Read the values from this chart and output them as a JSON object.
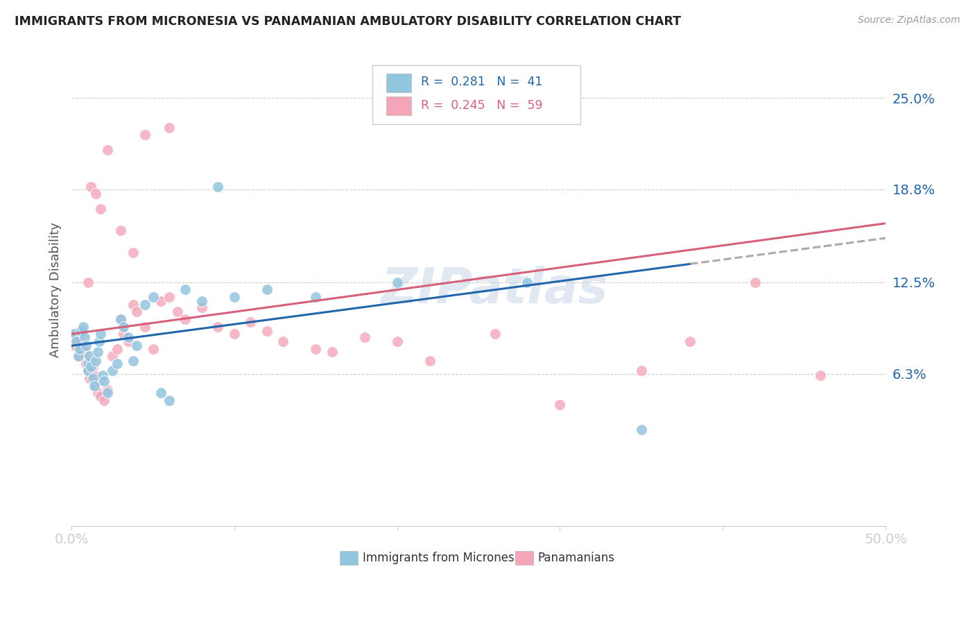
{
  "title": "IMMIGRANTS FROM MICRONESIA VS PANAMANIAN AMBULATORY DISABILITY CORRELATION CHART",
  "source": "Source: ZipAtlas.com",
  "ylabel": "Ambulatory Disability",
  "yticks": [
    0.063,
    0.125,
    0.188,
    0.25
  ],
  "ytick_labels": [
    "6.3%",
    "12.5%",
    "18.8%",
    "25.0%"
  ],
  "xlim": [
    0.0,
    0.5
  ],
  "ylim": [
    -0.04,
    0.28
  ],
  "color_blue": "#92c5de",
  "color_pink": "#f4a6b8",
  "color_blue_line": "#2166ac",
  "color_pink_line": "#d6607a",
  "color_dashed": "#aaaaaa",
  "watermark": "ZIPatlas",
  "blue_x": [
    0.002,
    0.003,
    0.004,
    0.005,
    0.006,
    0.007,
    0.008,
    0.009,
    0.01,
    0.01,
    0.011,
    0.012,
    0.013,
    0.014,
    0.015,
    0.016,
    0.017,
    0.018,
    0.019,
    0.02,
    0.022,
    0.025,
    0.028,
    0.03,
    0.032,
    0.035,
    0.038,
    0.04,
    0.045,
    0.05,
    0.055,
    0.06,
    0.07,
    0.08,
    0.09,
    0.1,
    0.12,
    0.15,
    0.2,
    0.28,
    0.35
  ],
  "blue_y": [
    0.09,
    0.085,
    0.075,
    0.08,
    0.092,
    0.095,
    0.088,
    0.082,
    0.07,
    0.065,
    0.075,
    0.068,
    0.06,
    0.055,
    0.072,
    0.078,
    0.085,
    0.09,
    0.062,
    0.058,
    0.05,
    0.065,
    0.07,
    0.1,
    0.095,
    0.088,
    0.072,
    0.082,
    0.11,
    0.115,
    0.05,
    0.045,
    0.12,
    0.112,
    0.19,
    0.115,
    0.12,
    0.115,
    0.125,
    0.125,
    0.025
  ],
  "pink_x": [
    0.001,
    0.002,
    0.003,
    0.004,
    0.005,
    0.006,
    0.007,
    0.008,
    0.009,
    0.01,
    0.011,
    0.012,
    0.013,
    0.014,
    0.015,
    0.016,
    0.017,
    0.018,
    0.02,
    0.022,
    0.025,
    0.028,
    0.03,
    0.032,
    0.035,
    0.038,
    0.04,
    0.045,
    0.05,
    0.055,
    0.06,
    0.065,
    0.07,
    0.08,
    0.09,
    0.1,
    0.11,
    0.12,
    0.13,
    0.15,
    0.16,
    0.18,
    0.2,
    0.22,
    0.26,
    0.3,
    0.35,
    0.38,
    0.42,
    0.46,
    0.01,
    0.012,
    0.015,
    0.018,
    0.022,
    0.03,
    0.038,
    0.045,
    0.06
  ],
  "pink_y": [
    0.09,
    0.082,
    0.088,
    0.075,
    0.092,
    0.085,
    0.08,
    0.078,
    0.07,
    0.065,
    0.06,
    0.072,
    0.068,
    0.062,
    0.055,
    0.05,
    0.058,
    0.048,
    0.045,
    0.052,
    0.075,
    0.08,
    0.1,
    0.09,
    0.085,
    0.11,
    0.105,
    0.095,
    0.08,
    0.112,
    0.115,
    0.105,
    0.1,
    0.108,
    0.095,
    0.09,
    0.098,
    0.092,
    0.085,
    0.08,
    0.078,
    0.088,
    0.085,
    0.072,
    0.09,
    0.042,
    0.065,
    0.085,
    0.125,
    0.062,
    0.125,
    0.19,
    0.185,
    0.175,
    0.215,
    0.16,
    0.145,
    0.225,
    0.23
  ]
}
